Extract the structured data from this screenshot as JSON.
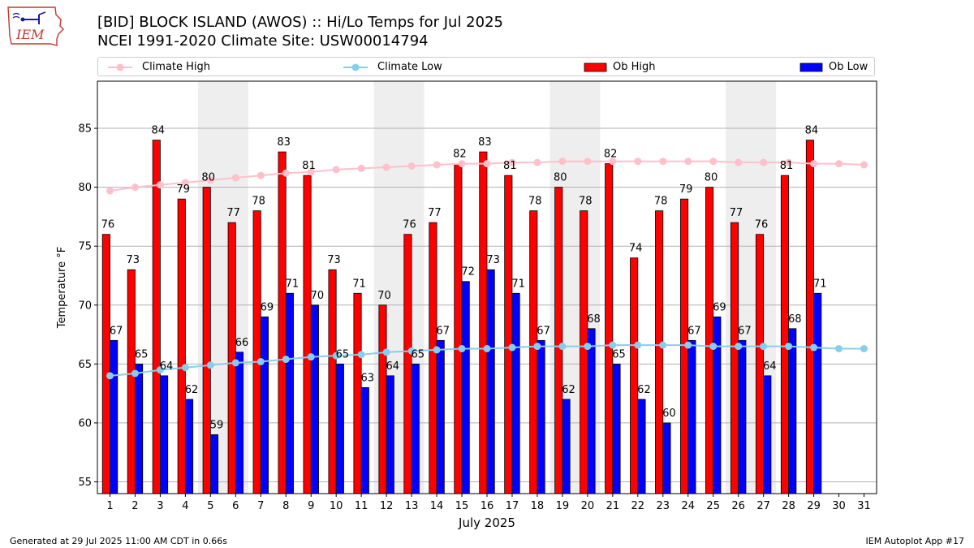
{
  "header": {
    "title_line1": "[BID] BLOCK ISLAND (AWOS) :: Hi/Lo Temps for Jul 2025",
    "title_line2": "NCEI 1991-2020 Climate Site: USW00014794",
    "logo_text": "IEM"
  },
  "legend": {
    "climate_high": "Climate High",
    "climate_low": "Climate Low",
    "ob_high": "Ob High",
    "ob_low": "Ob Low"
  },
  "footer": {
    "left": "Generated at 29 Jul 2025 11:00 AM CDT in 0.66s",
    "right": "IEM Autoplot App #17"
  },
  "colors": {
    "ob_high": "#ff0000",
    "ob_low": "#0000ff",
    "climate_high": "#ffc0cb",
    "climate_low": "#87ceeb",
    "weekend_shade": "#eeeeee",
    "grid": "#b0b0b0"
  },
  "chart_data": {
    "type": "bar",
    "title": "[BID] BLOCK ISLAND (AWOS) :: Hi/Lo Temps for Jul 2025",
    "subtitle": "NCEI 1991-2020 Climate Site: USW00014794",
    "xlabel": "July 2025",
    "ylabel": "Temperature °F",
    "ylim": [
      54,
      89
    ],
    "xlim": [
      0.5,
      31.5
    ],
    "yticks": [
      55,
      60,
      65,
      70,
      75,
      80,
      85
    ],
    "grid": "horizontal",
    "legend_position": "top",
    "categories": [
      1,
      2,
      3,
      4,
      5,
      6,
      7,
      8,
      9,
      10,
      11,
      12,
      13,
      14,
      15,
      16,
      17,
      18,
      19,
      20,
      21,
      22,
      23,
      24,
      25,
      26,
      27,
      28,
      29,
      30,
      31
    ],
    "shaded_weekend_days": [
      5,
      6,
      12,
      13,
      19,
      20,
      26,
      27
    ],
    "series": [
      {
        "name": "Ob High",
        "kind": "bar",
        "values": [
          76,
          73,
          84,
          79,
          80,
          77,
          78,
          83,
          81,
          73,
          71,
          70,
          76,
          77,
          82,
          83,
          81,
          78,
          80,
          78,
          82,
          74,
          78,
          79,
          80,
          77,
          76,
          81,
          84,
          null,
          null
        ]
      },
      {
        "name": "Ob Low",
        "kind": "bar",
        "values": [
          67,
          65,
          64,
          62,
          59,
          66,
          69,
          71,
          70,
          65,
          63,
          64,
          65,
          67,
          72,
          73,
          71,
          67,
          62,
          68,
          65,
          62,
          60,
          67,
          69,
          67,
          64,
          68,
          71,
          null,
          null
        ]
      },
      {
        "name": "Climate High",
        "kind": "line",
        "values": [
          79.7,
          80.0,
          80.2,
          80.4,
          80.6,
          80.8,
          81.0,
          81.2,
          81.3,
          81.5,
          81.6,
          81.7,
          81.8,
          81.9,
          82.0,
          82.0,
          82.1,
          82.1,
          82.2,
          82.2,
          82.2,
          82.2,
          82.2,
          82.2,
          82.2,
          82.1,
          82.1,
          82.1,
          82.0,
          82.0,
          81.9
        ]
      },
      {
        "name": "Climate Low",
        "kind": "line",
        "values": [
          64.0,
          64.2,
          64.5,
          64.7,
          64.9,
          65.1,
          65.2,
          65.4,
          65.6,
          65.7,
          65.8,
          66.0,
          66.1,
          66.2,
          66.3,
          66.3,
          66.4,
          66.5,
          66.5,
          66.5,
          66.6,
          66.6,
          66.6,
          66.6,
          66.5,
          66.5,
          66.5,
          66.5,
          66.4,
          66.3,
          66.3
        ]
      }
    ]
  }
}
